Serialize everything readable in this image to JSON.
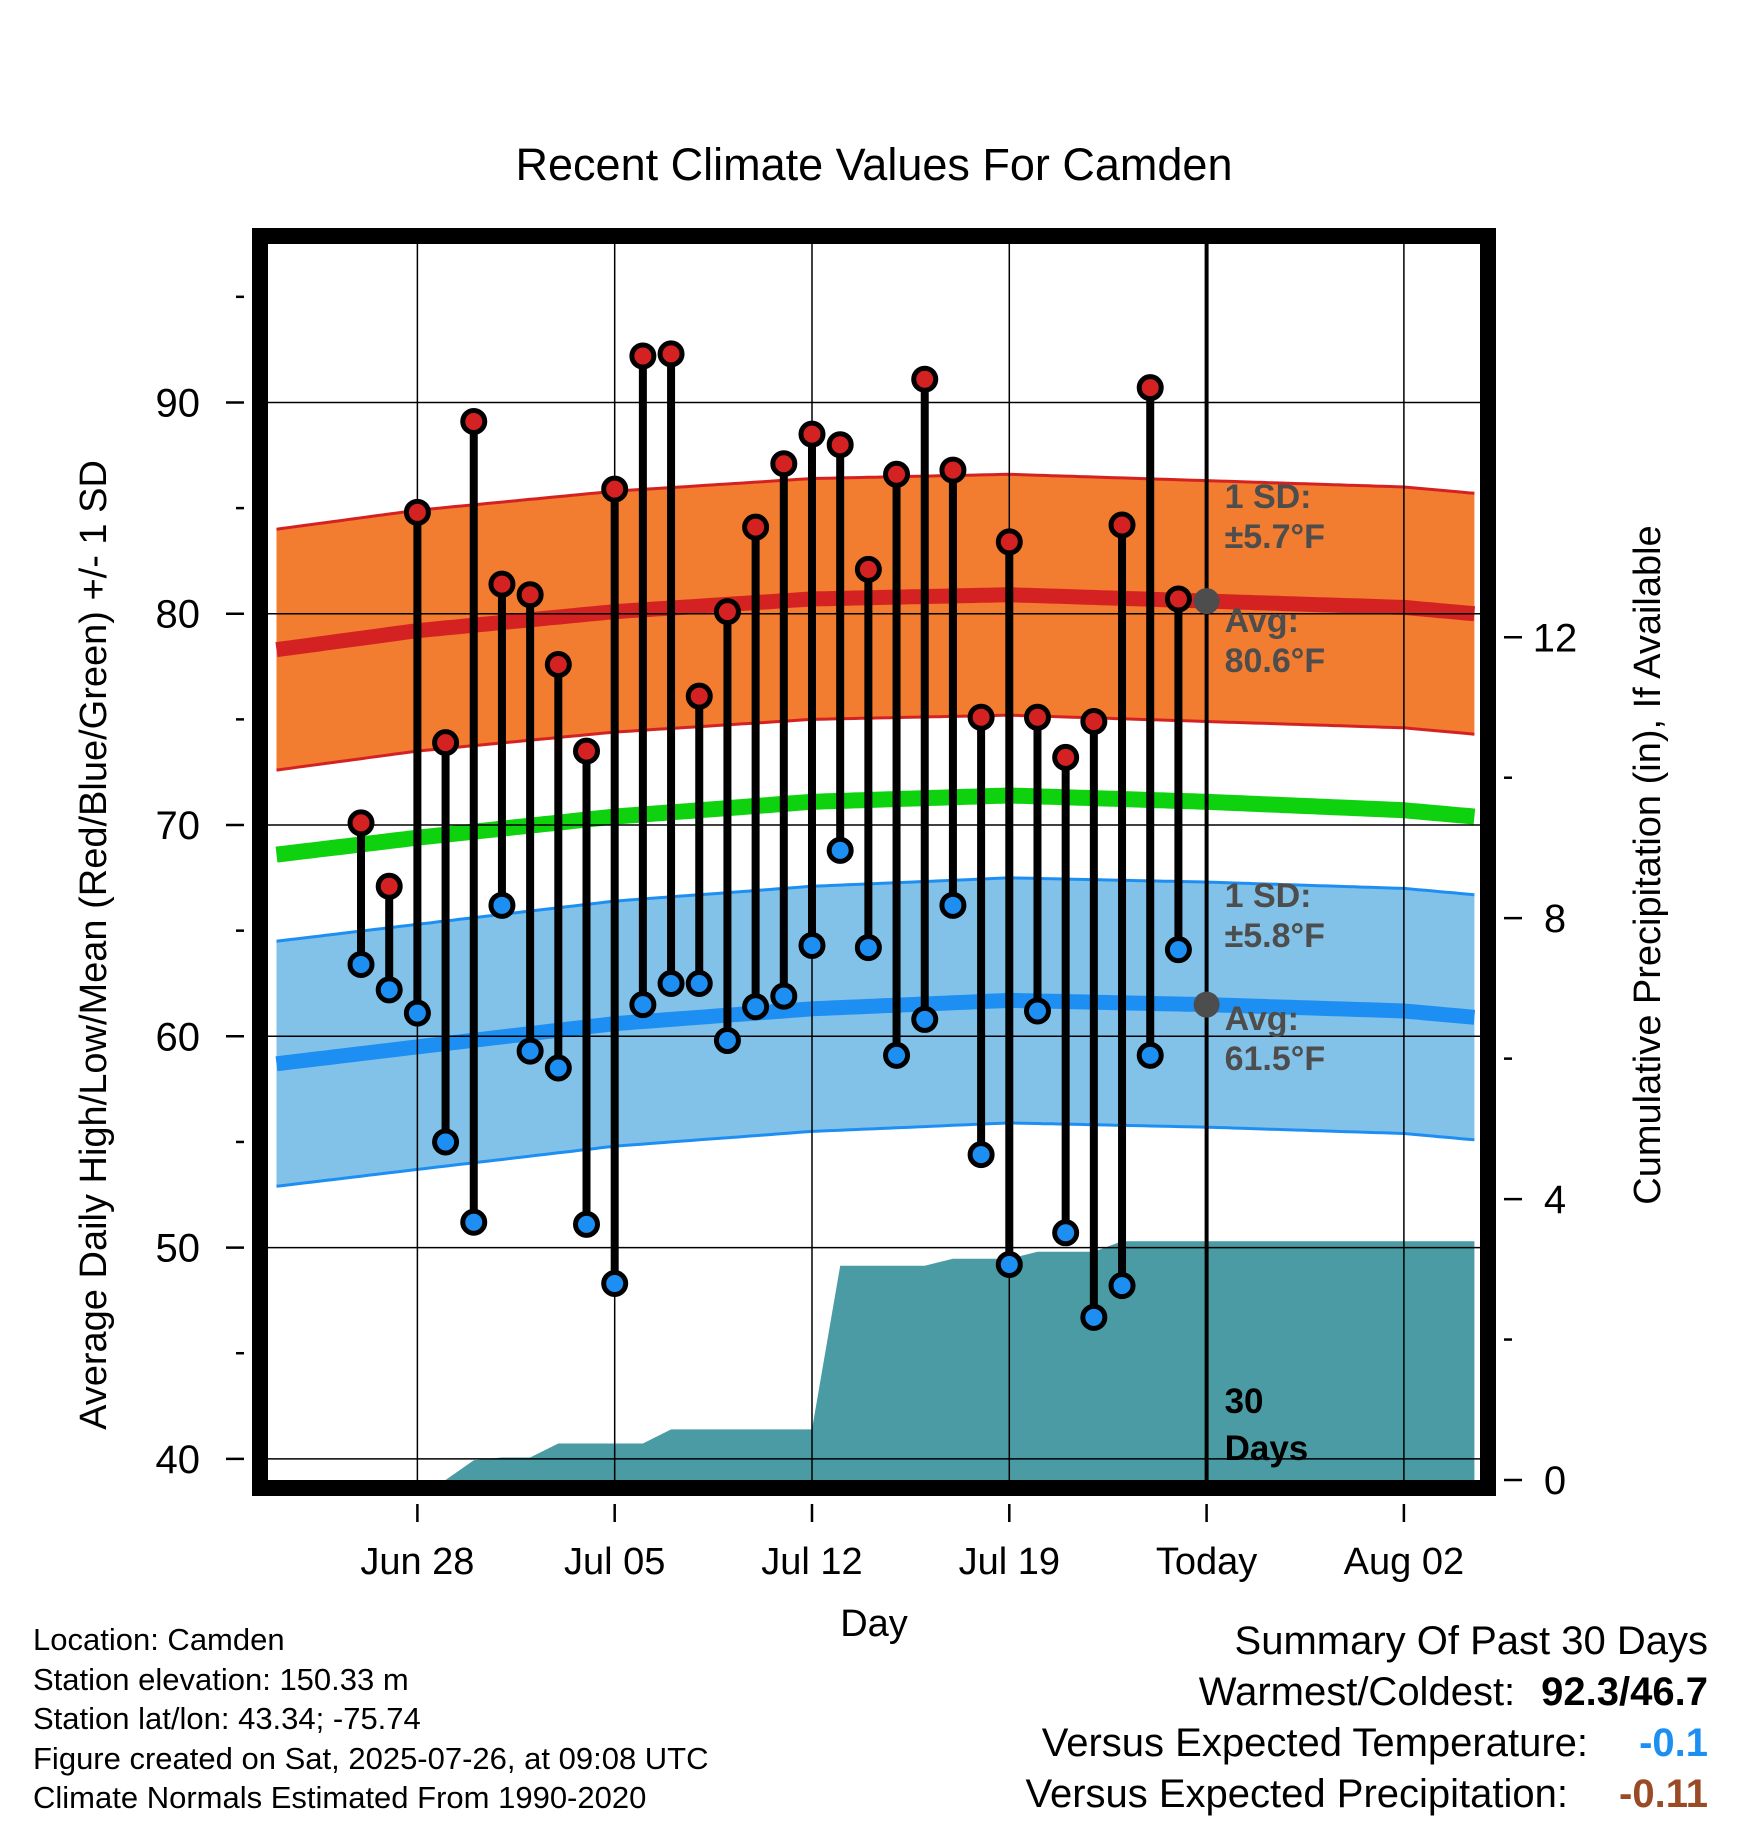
{
  "chart_data": {
    "type": "line",
    "title": "Recent Climate Values For Camden",
    "xlabel": "Day",
    "ylabel": "Average Daily High/Low/Mean (Red/Blue/Green) +/- 1 SD",
    "y2label": "Cumulative Precipitation (in), If Available",
    "ylim": [
      39,
      97.5
    ],
    "y2lim": [
      0,
      17.6
    ],
    "xlim": [
      -33.3,
      9.7
    ],
    "x_tick_labels": [
      {
        "day": -28,
        "label": "Jun 28"
      },
      {
        "day": -21,
        "label": "Jul 05"
      },
      {
        "day": -14,
        "label": "Jul 12"
      },
      {
        "day": -7,
        "label": "Jul 19"
      },
      {
        "day": 0,
        "label": "Today"
      },
      {
        "day": 7,
        "label": "Aug 02"
      }
    ],
    "y_ticks": [
      40,
      50,
      60,
      70,
      80,
      90
    ],
    "y2_ticks": [
      0,
      4,
      8,
      12
    ],
    "grid": true,
    "today_marker": {
      "day": 0,
      "label_line1": "30",
      "label_line2": "Days"
    },
    "daily_days": [
      -30,
      -29,
      -28,
      -27,
      -26,
      -25,
      -24,
      -23,
      -22,
      -21,
      -20,
      -19,
      -18,
      -17,
      -16,
      -15,
      -14,
      -13,
      -12,
      -11,
      -10,
      -9,
      -8,
      -7,
      -6,
      -5,
      -4,
      -3,
      -2,
      -1
    ],
    "daily_high": [
      70.1,
      67.1,
      84.8,
      73.9,
      89.1,
      81.4,
      80.9,
      77.6,
      73.5,
      85.9,
      92.2,
      92.3,
      76.1,
      80.1,
      84.1,
      87.1,
      88.5,
      88.0,
      82.1,
      86.6,
      91.1,
      86.8,
      75.1,
      83.4,
      75.1,
      73.2,
      74.9,
      84.2,
      90.7,
      80.7
    ],
    "daily_low": [
      63.4,
      62.2,
      61.1,
      55.0,
      51.2,
      66.2,
      59.3,
      58.5,
      51.1,
      48.3,
      61.5,
      62.5,
      62.5,
      59.8,
      61.4,
      61.9,
      64.3,
      68.8,
      64.2,
      59.1,
      60.8,
      66.2,
      54.4,
      49.2,
      61.2,
      50.7,
      46.7,
      48.2,
      59.1,
      64.1
    ],
    "normal_curve_days": [
      -33,
      -28,
      -21,
      -14,
      -7,
      0,
      7,
      9.5
    ],
    "normal_high": [
      78.3,
      79.2,
      80.1,
      80.7,
      80.9,
      80.6,
      80.3,
      80.0
    ],
    "normal_low": [
      58.7,
      59.5,
      60.6,
      61.3,
      61.7,
      61.5,
      61.2,
      60.9
    ],
    "normal_mean": [
      68.6,
      69.4,
      70.4,
      71.1,
      71.4,
      71.1,
      70.7,
      70.4
    ],
    "high_sd": 5.7,
    "low_sd": 5.8,
    "high_annotation": {
      "sd_title": "1 SD:",
      "sd_value": "±5.7°F",
      "avg_title": "Avg:",
      "avg_value": "80.6°F",
      "avg": 80.6
    },
    "low_annotation": {
      "sd_title": "1 SD:",
      "sd_value": "±5.8°F",
      "avg_title": "Avg:",
      "avg_value": "61.5°F",
      "avg": 61.5
    },
    "precip_cumulative": [
      {
        "day": -30,
        "value": 0.0
      },
      {
        "day": -27,
        "value": 0.0
      },
      {
        "day": -26,
        "value": 0.28
      },
      {
        "day": -25,
        "value": 0.32
      },
      {
        "day": -24,
        "value": 0.32
      },
      {
        "day": -23,
        "value": 0.52
      },
      {
        "day": -20,
        "value": 0.52
      },
      {
        "day": -19,
        "value": 0.72
      },
      {
        "day": -14,
        "value": 0.72
      },
      {
        "day": -13,
        "value": 3.05
      },
      {
        "day": -10,
        "value": 3.05
      },
      {
        "day": -9,
        "value": 3.15
      },
      {
        "day": -7,
        "value": 3.15
      },
      {
        "day": -6,
        "value": 3.25
      },
      {
        "day": -4,
        "value": 3.25
      },
      {
        "day": -3,
        "value": 3.4
      },
      {
        "day": 0,
        "value": 3.4
      },
      {
        "day": 9.5,
        "value": 3.4
      }
    ],
    "colors": {
      "high_band": "#f27c2f",
      "high_line": "#d42222",
      "low_band": "#83c2e8",
      "low_line": "#1e8ff2",
      "mean_line": "#0fd20f",
      "precip": "#4a9ba4",
      "high_marker": "#d42222",
      "low_marker": "#1e8ff2",
      "annotation_text": "#4d4d4d",
      "avg_dot": "#4d4d4d"
    }
  },
  "info": {
    "location": "Location: Camden",
    "elevation": "Station elevation: 150.33 m",
    "latlon": "Station lat/lon: 43.34; -75.74",
    "created": "Figure created on Sat, 2025-07-26, at 09:08 UTC",
    "normals": "Climate Normals Estimated From 1990-2020"
  },
  "summary": {
    "title": "Summary Of Past 30 Days",
    "warmest_label": "Warmest/Coldest:",
    "warmest_value": "92.3/46.7",
    "temp_label": "Versus Expected Temperature:",
    "temp_value": "-0.1",
    "temp_color": "#1e8ff2",
    "precip_label": "Versus Expected Precipitation:",
    "precip_value": "-0.11",
    "precip_color": "#9a4a24"
  }
}
